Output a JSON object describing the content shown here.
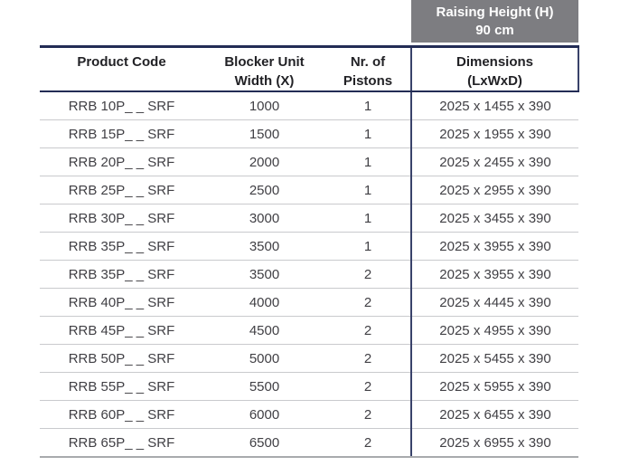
{
  "header_box": {
    "line1": "Raising Height (H)",
    "line2": "90 cm"
  },
  "columns": [
    {
      "line1": "Product Code",
      "line2": ""
    },
    {
      "line1": "Blocker Unit",
      "line2": "Width (X)"
    },
    {
      "line1": "Nr. of",
      "line2": "Pistons"
    },
    {
      "line1": "Dimensions",
      "line2": "(LxWxD)"
    }
  ],
  "table": {
    "rows": [
      {
        "product_code": "RRB 10P_ _ SRF",
        "blocker_unit_width": "1000",
        "nr_of_pistons": "1",
        "dimensions": "2025 x 1455 x 390"
      },
      {
        "product_code": "RRB 15P_ _ SRF",
        "blocker_unit_width": "1500",
        "nr_of_pistons": "1",
        "dimensions": "2025 x 1955 x 390"
      },
      {
        "product_code": "RRB 20P_ _ SRF",
        "blocker_unit_width": "2000",
        "nr_of_pistons": "1",
        "dimensions": "2025 x 2455 x 390"
      },
      {
        "product_code": "RRB 25P_ _ SRF",
        "blocker_unit_width": "2500",
        "nr_of_pistons": "1",
        "dimensions": "2025 x 2955 x 390"
      },
      {
        "product_code": "RRB 30P_ _ SRF",
        "blocker_unit_width": "3000",
        "nr_of_pistons": "1",
        "dimensions": "2025 x 3455 x 390"
      },
      {
        "product_code": "RRB 35P_ _ SRF",
        "blocker_unit_width": "3500",
        "nr_of_pistons": "1",
        "dimensions": "2025 x 3955 x 390"
      },
      {
        "product_code": "RRB 35P_ _ SRF",
        "blocker_unit_width": "3500",
        "nr_of_pistons": "2",
        "dimensions": "2025 x 3955 x 390"
      },
      {
        "product_code": "RRB 40P_ _ SRF",
        "blocker_unit_width": "4000",
        "nr_of_pistons": "2",
        "dimensions": "2025 x 4445 x 390"
      },
      {
        "product_code": "RRB 45P_ _ SRF",
        "blocker_unit_width": "4500",
        "nr_of_pistons": "2",
        "dimensions": "2025 x 4955 x 390"
      },
      {
        "product_code": "RRB 50P_ _ SRF",
        "blocker_unit_width": "5000",
        "nr_of_pistons": "2",
        "dimensions": "2025 x 5455 x 390"
      },
      {
        "product_code": "RRB 55P_ _ SRF",
        "blocker_unit_width": "5500",
        "nr_of_pistons": "2",
        "dimensions": "2025 x 5955 x 390"
      },
      {
        "product_code": "RRB 60P_ _ SRF",
        "blocker_unit_width": "6000",
        "nr_of_pistons": "2",
        "dimensions": "2025 x 6455 x 390"
      },
      {
        "product_code": "RRB 65P_ _ SRF",
        "blocker_unit_width": "6500",
        "nr_of_pistons": "2",
        "dimensions": "2025 x 6955 x 390"
      }
    ]
  },
  "colors": {
    "header_band_gray": "#7d7d81",
    "accent_navy": "#232c55",
    "row_separator": "#c9cacd",
    "data_text": "#414045"
  }
}
